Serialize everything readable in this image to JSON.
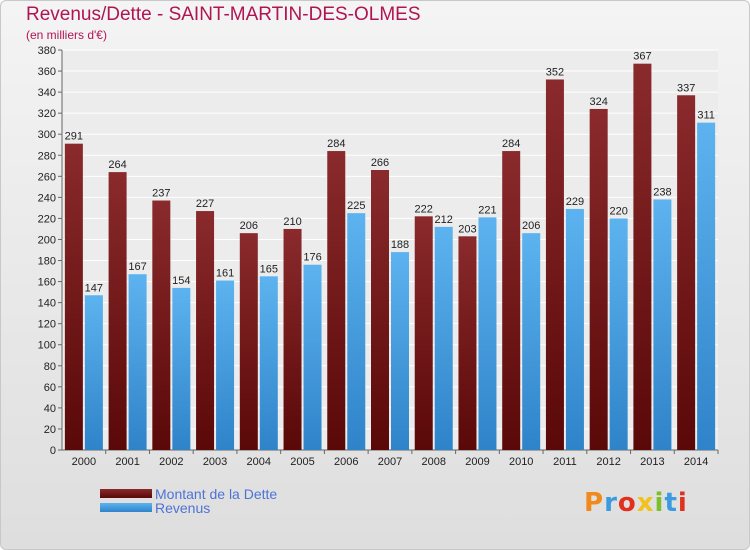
{
  "header": {
    "title": "Revenus/Dette - SAINT-MARTIN-DES-OLMES",
    "subtitle": "(en milliers d'€)"
  },
  "logo": {
    "text": "Proxiti"
  },
  "colors": {
    "title": "#b01552",
    "debt": "#7a1a1e",
    "revenue": "#4aa3e6",
    "legend_text": "#4d73d6"
  },
  "chart_data": {
    "type": "bar",
    "categories": [
      "2000",
      "2001",
      "2002",
      "2003",
      "2004",
      "2005",
      "2006",
      "2007",
      "2008",
      "2009",
      "2010",
      "2011",
      "2012",
      "2013",
      "2014"
    ],
    "series": [
      {
        "name": "Montant de la Dette",
        "values": [
          291,
          264,
          237,
          227,
          206,
          210,
          284,
          266,
          222,
          203,
          284,
          352,
          324,
          367,
          337
        ]
      },
      {
        "name": "Revenus",
        "values": [
          147,
          167,
          154,
          161,
          165,
          176,
          225,
          188,
          212,
          221,
          206,
          229,
          220,
          238,
          311
        ]
      }
    ],
    "ylim": [
      0,
      380
    ],
    "yticks": [
      0,
      20,
      40,
      60,
      80,
      100,
      120,
      140,
      160,
      180,
      200,
      220,
      240,
      260,
      280,
      300,
      320,
      340,
      360,
      380
    ],
    "grid": true,
    "legend": "bottom-left"
  }
}
